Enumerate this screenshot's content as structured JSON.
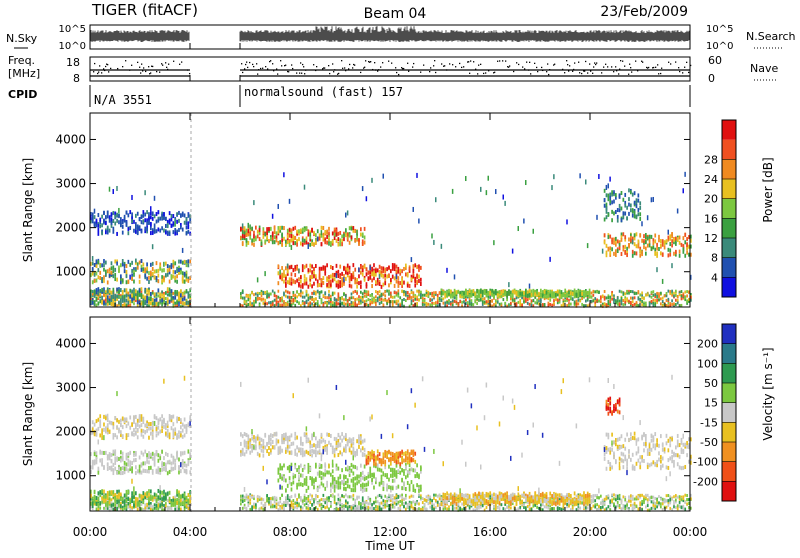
{
  "header": {
    "title": "TIGER (fitACF)",
    "beam": "Beam 04",
    "date": "23/Feb/2009"
  },
  "strips": {
    "nsky_label": "N.Sky",
    "nsky_ticks": [
      "10^5",
      "10^0"
    ],
    "nsearch_label": "N.Search",
    "freq_label_1": "Freq.",
    "freq_label_2": "[MHz]",
    "freq_ticks": [
      "18",
      "8"
    ],
    "nave_label": "Nave",
    "nave_ticks": [
      "60",
      "0"
    ],
    "cpid_label": "CPID",
    "cpid_1": "N/A 3551",
    "cpid_2": "normalsound (fast) 157"
  },
  "chart_data": [
    {
      "type": "heatmap",
      "name": "power",
      "ylabel": "Slant Range [km]",
      "y_ticks": [
        "1000",
        "2000",
        "3000",
        "4000"
      ],
      "ylim": [
        200,
        4600
      ],
      "xlim": [
        0,
        24
      ],
      "colorbar_label": "Power [dB]",
      "colorbar_ticks": [
        "4",
        "8",
        "12",
        "16",
        "20",
        "24",
        "28"
      ],
      "colorbar_colors": [
        "#1010e0",
        "#2050b0",
        "#3a8a7a",
        "#3aa040",
        "#7cc840",
        "#e8c020",
        "#f08a20",
        "#f05020",
        "#e01010"
      ]
    },
    {
      "type": "heatmap",
      "name": "velocity",
      "ylabel": "Slant Range [km]",
      "y_ticks": [
        "1000",
        "2000",
        "3000",
        "4000"
      ],
      "ylim": [
        200,
        4600
      ],
      "xlim": [
        0,
        24
      ],
      "colorbar_label": "Velocity [m s⁻¹]",
      "colorbar_ticks": [
        "200",
        "100",
        "50",
        "15",
        "-15",
        "-50",
        "-100",
        "-200"
      ],
      "colorbar_colors": [
        "#2030c0",
        "#2a7a8a",
        "#2e9a50",
        "#7cc840",
        "#c8c8c8",
        "#e8c020",
        "#f09020",
        "#f05018",
        "#e01010"
      ]
    }
  ],
  "xaxis": {
    "label": "Time UT",
    "ticks": [
      "00:00",
      "04:00",
      "08:00",
      "12:00",
      "16:00",
      "20:00",
      "00:00"
    ]
  }
}
